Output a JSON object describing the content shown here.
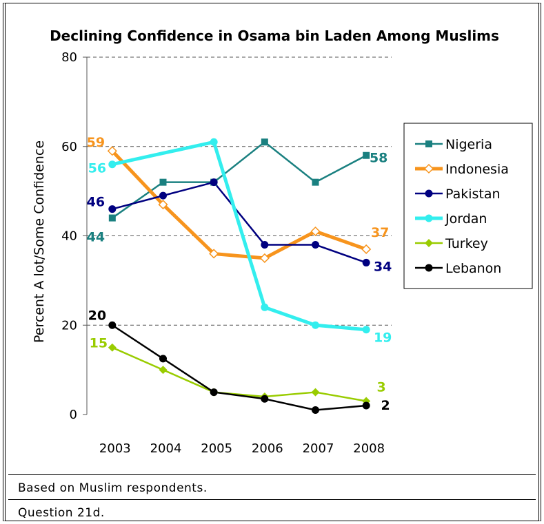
{
  "chart_data": {
    "type": "line",
    "title": "Declining Confidence in Osama bin Laden Among Muslims",
    "ylabel": "Percent A lot/Some Confidence",
    "xlabel": "",
    "ylim": [
      0,
      80
    ],
    "yticks": [
      "0",
      "20",
      "40",
      "60",
      "80"
    ],
    "categories": [
      "2003",
      "2004",
      "2005",
      "2006",
      "2007",
      "2008"
    ],
    "grid": "horizontal dashed",
    "legend_position": "right",
    "series": [
      {
        "name": "Nigeria",
        "color": "#1a8080",
        "marker": "square",
        "values": [
          44,
          52,
          52,
          61,
          52,
          58
        ],
        "first_label": "44",
        "last_label": "58"
      },
      {
        "name": "Indonesia",
        "color": "#f7941d",
        "marker": "diamond-open",
        "values": [
          59,
          47,
          36,
          35,
          41,
          37
        ],
        "first_label": "59",
        "last_label": "37"
      },
      {
        "name": "Pakistan",
        "color": "#000080",
        "marker": "circle",
        "values": [
          46,
          49,
          52,
          38,
          38,
          34
        ],
        "first_label": "46",
        "last_label": "34"
      },
      {
        "name": "Jordan",
        "color": "#33eeee",
        "marker": "circle",
        "values": [
          56,
          58.5,
          61,
          24,
          20,
          19
        ],
        "first_label": "56",
        "last_label": "19"
      },
      {
        "name": "Turkey",
        "color": "#99cc00",
        "marker": "diamond",
        "values": [
          15,
          10,
          5,
          4,
          5,
          3
        ],
        "first_label": "15",
        "last_label": "3"
      },
      {
        "name": "Lebanon",
        "color": "#000000",
        "marker": "circle",
        "values": [
          20,
          12.5,
          5,
          3.5,
          1,
          2
        ],
        "first_label": "20",
        "last_label": "2"
      }
    ]
  },
  "notes": {
    "line1": "Based on Muslim respondents.",
    "line2": "Question 21d."
  }
}
